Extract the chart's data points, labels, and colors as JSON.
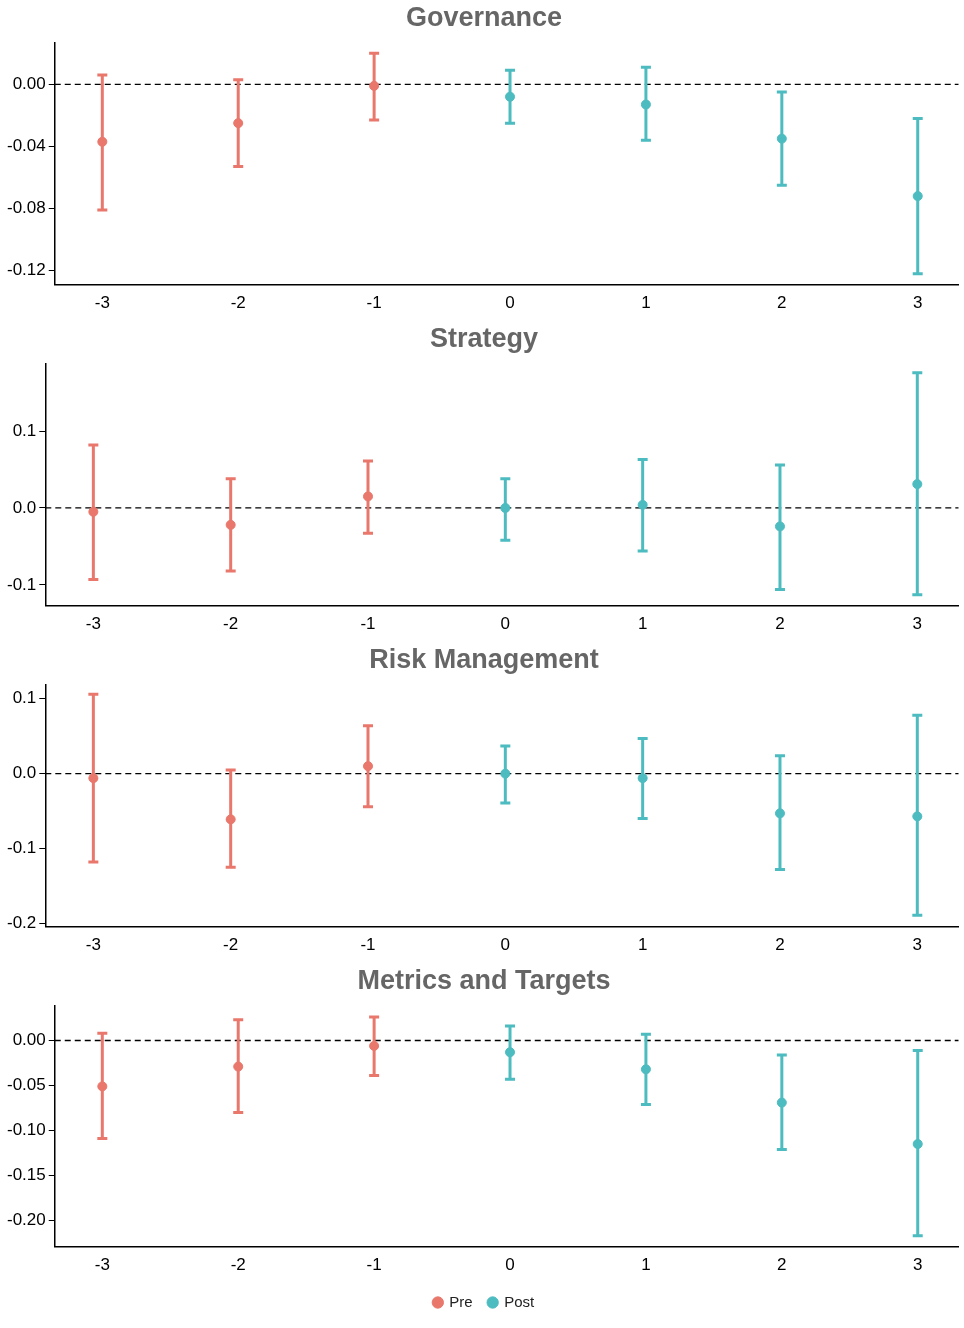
{
  "chart_data": [
    {
      "type": "scatter",
      "title": "Governance",
      "xlim": [
        -3.35,
        3.3
      ],
      "xticks": [
        -3,
        -2,
        -1,
        0,
        1,
        2,
        3
      ],
      "ylim": [
        -0.129,
        0.027
      ],
      "yticks": [
        {
          "value": 0,
          "label": "0.00"
        },
        -0.04,
        -0.08,
        -0.12
      ],
      "grid": false,
      "marker": "circle",
      "ref_lines": [
        {
          "axis": "y",
          "value": 0,
          "line_style": "dashed",
          "color": "#000000"
        }
      ],
      "series": [
        {
          "color": "#e9776c",
          "x": [
            -3,
            -2,
            -1
          ],
          "values": [
            -0.037,
            -0.025,
            -0.001
          ],
          "errors": [
            [
              -0.081,
              0.006
            ],
            [
              -0.053,
              0.003
            ],
            [
              -0.023,
              0.02
            ]
          ]
        },
        {
          "color": "#4cbcc0",
          "x": [
            0,
            1,
            2,
            3
          ],
          "values": [
            -0.008,
            -0.013,
            -0.035,
            -0.072
          ],
          "errors": [
            [
              -0.025,
              0.009
            ],
            [
              -0.036,
              0.011
            ],
            [
              -0.065,
              -0.005
            ],
            [
              -0.122,
              -0.022
            ]
          ]
        }
      ]
    },
    {
      "type": "scatter",
      "title": "Strategy",
      "xlim": [
        -3.35,
        3.3
      ],
      "xticks": [
        -3,
        -2,
        -1,
        0,
        1,
        2,
        3
      ],
      "ylim": [
        -0.127,
        0.188
      ],
      "yticks": [
        0.1,
        {
          "value": 0,
          "label": "0.0"
        },
        -0.1
      ],
      "grid": false,
      "marker": "circle",
      "ref_lines": [
        {
          "axis": "y",
          "value": 0,
          "line_style": "dashed",
          "color": "#000000"
        }
      ],
      "series": [
        {
          "color": "#e9776c",
          "x": [
            -3,
            -2,
            -1
          ],
          "values": [
            -0.005,
            -0.022,
            0.015
          ],
          "errors": [
            [
              -0.093,
              0.082
            ],
            [
              -0.082,
              0.038
            ],
            [
              -0.033,
              0.061
            ]
          ]
        },
        {
          "color": "#4cbcc0",
          "x": [
            0,
            1,
            2,
            3
          ],
          "values": [
            0.0,
            0.004,
            -0.024,
            0.031
          ],
          "errors": [
            [
              -0.042,
              0.038
            ],
            [
              -0.056,
              0.063
            ],
            [
              -0.106,
              0.056
            ],
            [
              -0.113,
              0.176
            ]
          ]
        }
      ]
    },
    {
      "type": "scatter",
      "title": "Risk Management",
      "xlim": [
        -3.35,
        3.3
      ],
      "xticks": [
        -3,
        -2,
        -1,
        0,
        1,
        2,
        3
      ],
      "ylim": [
        -0.204,
        0.119
      ],
      "yticks": [
        0.1,
        {
          "value": 0,
          "label": "0.0"
        },
        -0.1,
        -0.2
      ],
      "grid": false,
      "marker": "circle",
      "ref_lines": [
        {
          "axis": "y",
          "value": 0,
          "line_style": "dashed",
          "color": "#000000"
        }
      ],
      "series": [
        {
          "color": "#e9776c",
          "x": [
            -3,
            -2,
            -1
          ],
          "values": [
            -0.006,
            -0.061,
            0.01
          ],
          "errors": [
            [
              -0.118,
              0.106
            ],
            [
              -0.125,
              0.005
            ],
            [
              -0.044,
              0.064
            ]
          ]
        },
        {
          "color": "#4cbcc0",
          "x": [
            0,
            1,
            2,
            3
          ],
          "values": [
            0.0,
            -0.006,
            -0.053,
            -0.057
          ],
          "errors": [
            [
              -0.039,
              0.037
            ],
            [
              -0.06,
              0.047
            ],
            [
              -0.128,
              0.024
            ],
            [
              -0.189,
              0.078
            ]
          ]
        }
      ]
    },
    {
      "type": "scatter",
      "title": "Metrics and Targets",
      "xlim": [
        -3.35,
        3.3
      ],
      "xticks": [
        -3,
        -2,
        -1,
        0,
        1,
        2,
        3
      ],
      "ylim": [
        -0.229,
        0.039
      ],
      "yticks": [
        {
          "value": 0,
          "label": "0.00"
        },
        -0.05,
        {
          "value": -0.1,
          "label": "-0.10"
        },
        -0.15,
        {
          "value": -0.2,
          "label": "-0.20"
        }
      ],
      "grid": false,
      "marker": "circle",
      "legend": "bottom",
      "ref_lines": [
        {
          "axis": "y",
          "value": 0,
          "line_style": "dashed",
          "color": "#000000"
        }
      ],
      "series": [
        {
          "name": "Pre",
          "color": "#e9776c",
          "x": [
            -3,
            -2,
            -1
          ],
          "values": [
            -0.051,
            -0.029,
            -0.006
          ],
          "errors": [
            [
              -0.109,
              0.008
            ],
            [
              -0.08,
              0.023
            ],
            [
              -0.039,
              0.026
            ]
          ]
        },
        {
          "name": "Post",
          "color": "#4cbcc0",
          "x": [
            0,
            1,
            2,
            3
          ],
          "values": [
            -0.013,
            -0.032,
            -0.069,
            -0.115
          ],
          "errors": [
            [
              -0.043,
              0.016
            ],
            [
              -0.071,
              0.007
            ],
            [
              -0.121,
              -0.016
            ],
            [
              -0.217,
              -0.011
            ]
          ]
        }
      ]
    }
  ]
}
